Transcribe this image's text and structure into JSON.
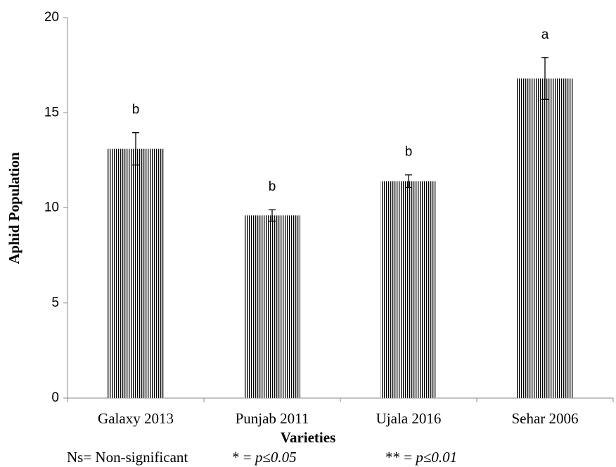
{
  "chart_data": {
    "type": "bar",
    "y_label": "Aphid Population",
    "x_label": "Varieties",
    "categories": [
      "Galaxy 2013",
      "Punjab 2011",
      "Ujala 2016",
      "Sehar 2006"
    ],
    "values": [
      13.1,
      9.6,
      11.4,
      16.8
    ],
    "errors": [
      0.85,
      0.3,
      0.33,
      1.1
    ],
    "annotations": [
      "b",
      "b",
      "b",
      "a"
    ],
    "color": "#000000",
    "pattern": "vertical-stripes",
    "ylim": [
      0,
      20
    ],
    "yticks": [
      0,
      5,
      10,
      15,
      20
    ],
    "grid": false,
    "footnote": [
      {
        "prefix": "Ns= Non-significant"
      },
      {
        "prefix": "* = ",
        "italic": "p≤0.05"
      },
      {
        "prefix": "** = ",
        "italic": "p≤0.01"
      }
    ]
  }
}
